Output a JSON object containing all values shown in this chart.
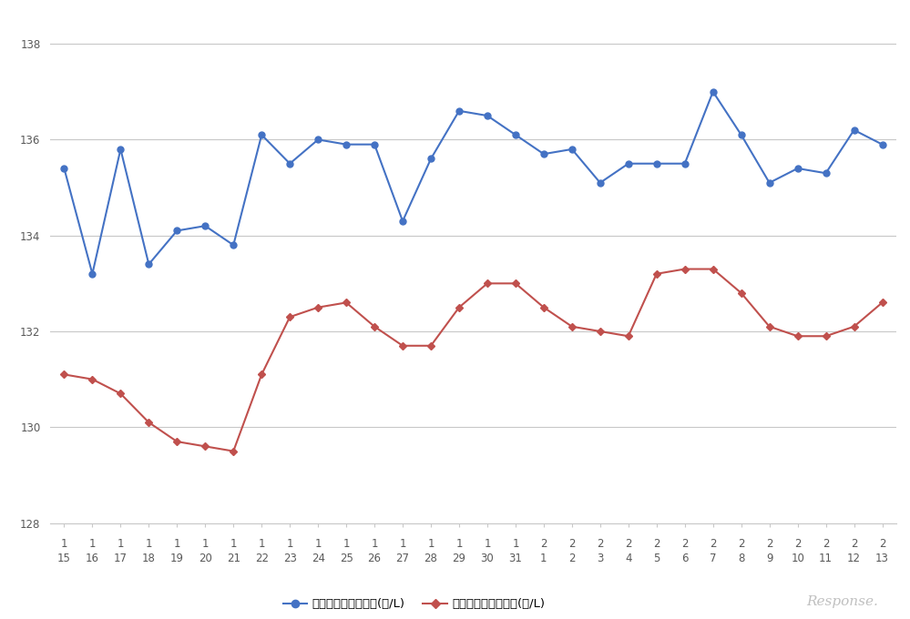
{
  "x_labels_row1": [
    "1",
    "1",
    "1",
    "1",
    "1",
    "1",
    "1",
    "1",
    "1",
    "1",
    "1",
    "1",
    "1",
    "1",
    "1",
    "1",
    "1",
    "2",
    "2",
    "2",
    "2",
    "2",
    "2",
    "2",
    "2",
    "2",
    "2",
    "2",
    "2",
    "2"
  ],
  "x_labels_row2": [
    "15",
    "16",
    "17",
    "18",
    "19",
    "20",
    "21",
    "22",
    "23",
    "24",
    "25",
    "26",
    "27",
    "28",
    "29",
    "30",
    "31",
    "1",
    "2",
    "3",
    "4",
    "5",
    "6",
    "7",
    "8",
    "9",
    "10",
    "11",
    "12",
    "13"
  ],
  "blue_values": [
    135.4,
    133.2,
    135.8,
    133.4,
    134.1,
    134.2,
    133.8,
    136.1,
    135.5,
    136.0,
    135.9,
    135.9,
    134.3,
    135.6,
    136.6,
    136.5,
    136.1,
    135.7,
    135.8,
    135.1,
    135.5,
    135.5,
    135.5,
    137.0,
    136.1,
    135.1,
    135.4,
    135.3,
    136.2,
    135.9
  ],
  "red_values": [
    131.1,
    131.0,
    130.7,
    130.1,
    129.7,
    129.6,
    129.5,
    131.1,
    132.3,
    132.5,
    132.6,
    132.1,
    131.7,
    131.7,
    132.5,
    133.0,
    133.0,
    132.5,
    132.1,
    132.0,
    131.9,
    133.2,
    133.3,
    133.3,
    132.8,
    132.1,
    131.9,
    131.9,
    132.1,
    132.6
  ],
  "blue_color": "#4472c4",
  "red_color": "#c0504d",
  "bg_color": "#ffffff",
  "grid_color": "#c8c8c8",
  "ylim": [
    128,
    138.5
  ],
  "yticks": [
    128,
    130,
    132,
    134,
    136,
    138
  ],
  "legend_labels": [
    "レギュラー看板価格(円/L)",
    "レギュラー実売価格(円/L)"
  ],
  "axis_label_color": "#595959",
  "tick_fontsize": 8.5,
  "legend_fontsize": 9.5,
  "watermark_text": "Response.",
  "watermark_color": "#c0c0c0"
}
